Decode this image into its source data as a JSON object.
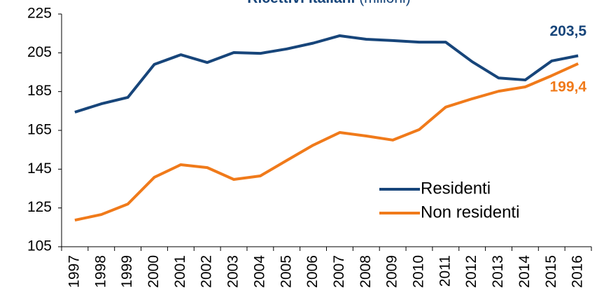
{
  "chart_data": {
    "type": "line",
    "title": "Ricettivi italiani",
    "subtitle": "(milioni)",
    "categories": [
      "1997",
      "1998",
      "1999",
      "2000",
      "2001",
      "2002",
      "2003",
      "2004",
      "2005",
      "2006",
      "2007",
      "2008",
      "2009",
      "2010",
      "2011",
      "2012",
      "2013",
      "2014",
      "2015",
      "2016"
    ],
    "series": [
      {
        "name": "Residenti",
        "color": "#17457a",
        "values": [
          174.4,
          178.7,
          182,
          199,
          204,
          200,
          205.1,
          204.7,
          207,
          210,
          213.8,
          212,
          211.3,
          210.5,
          210.5,
          200.4,
          192,
          191,
          200.8,
          203.5
        ],
        "value_labels": [
          null,
          null,
          null,
          null,
          null,
          null,
          null,
          null,
          null,
          null,
          null,
          null,
          null,
          null,
          null,
          null,
          null,
          null,
          null,
          "203,5"
        ]
      },
      {
        "name": "Non residenti",
        "color": "#f07a1a",
        "values": [
          118.7,
          121.6,
          127,
          140.8,
          147.3,
          145.8,
          139.7,
          141.5,
          149.5,
          157.4,
          163.9,
          162.1,
          160,
          165.4,
          177,
          181.3,
          185.2,
          187.4,
          193.2,
          199.4
        ],
        "value_labels": [
          null,
          null,
          null,
          null,
          null,
          null,
          null,
          null,
          null,
          null,
          null,
          null,
          null,
          null,
          null,
          null,
          null,
          null,
          null,
          "199,4"
        ]
      }
    ],
    "ylim": [
      105,
      225
    ],
    "yticks": [
      105,
      125,
      145,
      165,
      185,
      205,
      225
    ],
    "grid": false,
    "legend": "right"
  }
}
